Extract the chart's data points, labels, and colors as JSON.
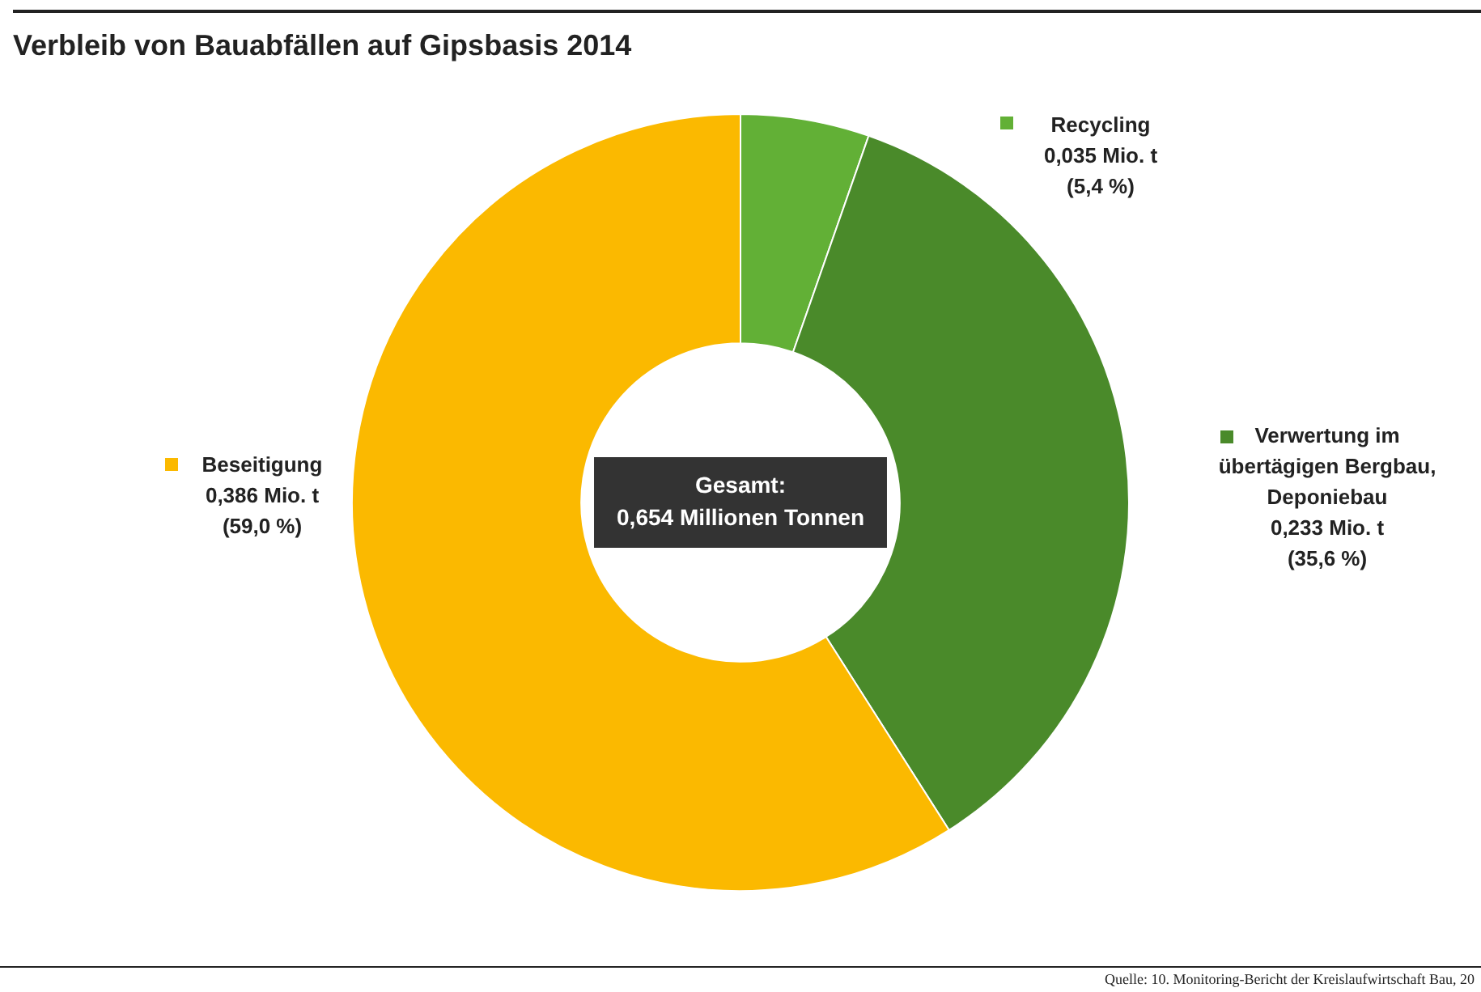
{
  "chart_data": {
    "type": "donut",
    "title": "Verbleib von Bauabfällen auf Gipsbasis 2014",
    "categories": [
      "Recycling",
      "Verwertung im\nübertägigen Bergbau,\nDeponiebau",
      "Beseitigung"
    ],
    "values": [
      0.035,
      0.233,
      0.386
    ],
    "value_labels": [
      "0,035 Mio. t\n(5,4 %)",
      "0,233 Mio. t\n(35,6 %)",
      "0,386 Mio. t\n(59,0 %)"
    ],
    "colors": [
      "#62b036",
      "#4a8a2a",
      "#fbb900"
    ],
    "legend": "top right",
    "annotations": [
      "Gesamt:\n0,654 Millionen Tonnen",
      "Quelle: 10. Monitoring-Bericht der Kreislaufwirtschaft Bau, 20"
    ]
  }
}
